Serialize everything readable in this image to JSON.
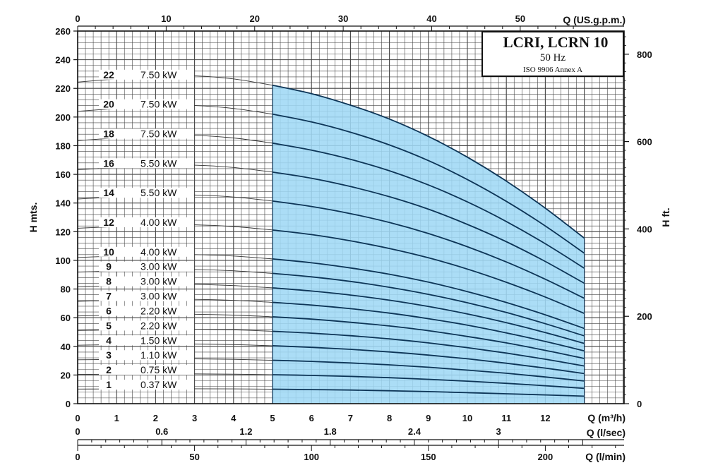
{
  "title_box": {
    "title": "LCRI, LCRN 10",
    "frequency": "50 Hz",
    "standard": "ISO 9906 Annex A"
  },
  "axes": {
    "left_label": "H mts.",
    "right_label": "H ft.",
    "top_label": "Q (US.g.p.m.)",
    "bottom_label_m3h": "Q (m³/h)",
    "bottom_label_lsec": "Q (l/sec)",
    "bottom_label_lmin": "Q (l/min)"
  },
  "colors": {
    "operating_range_fill": "#9fd8f5",
    "curve_in_range": "#0d3557",
    "curve_out_range": "#333333",
    "grid": "#444444"
  },
  "chart_data": {
    "type": "line",
    "title": "LCRI, LCRN 10",
    "subtitle": "50 Hz",
    "note": "ISO 9906 Annex A",
    "xlabel": "Q (m³/h)",
    "ylabel": "H mts.",
    "xlim": [
      0,
      13
    ],
    "ylim": [
      0,
      260
    ],
    "grid": true,
    "legend": "none",
    "operating_range": {
      "x_min": 5,
      "x_max": 13
    },
    "x": [
      0,
      1,
      2,
      3,
      4,
      5,
      6,
      7,
      8,
      9,
      10,
      11,
      12,
      13
    ],
    "y_ticks": [
      0,
      20,
      40,
      60,
      80,
      100,
      120,
      140,
      160,
      180,
      200,
      220,
      240,
      260
    ],
    "x_ticks": [
      "0",
      "1",
      "2",
      "3",
      "4",
      "5",
      "6",
      "7",
      "8",
      "9",
      "10",
      "11",
      "12",
      "Q (m³/h)"
    ],
    "top_axis_ticks": [
      "0",
      "10",
      "20",
      "30",
      "40",
      "50"
    ],
    "right_axis_ticks": [
      "0",
      "200",
      "400",
      "600",
      "800"
    ],
    "lsec_ticks": [
      "0",
      "0.6",
      "1.2",
      "1.8",
      "2.4",
      "3"
    ],
    "lmin_ticks": [
      "0",
      "50",
      "100",
      "150",
      "200"
    ],
    "series": [
      {
        "name": "1",
        "power": "0.37 kW",
        "values": [
          10.2,
          10.3,
          10.4,
          10.4,
          10.3,
          10.1,
          9.8,
          9.5,
          9.0,
          8.4,
          7.7,
          6.9,
          6.1,
          5.2
        ]
      },
      {
        "name": "2",
        "power": "0.75 kW",
        "values": [
          20.4,
          20.6,
          20.8,
          20.8,
          20.6,
          20.2,
          19.7,
          19.0,
          18.1,
          17.0,
          15.7,
          14.2,
          12.5,
          10.7
        ]
      },
      {
        "name": "3",
        "power": "1.10 kW",
        "values": [
          30.6,
          30.9,
          31.2,
          31.2,
          30.9,
          30.3,
          29.5,
          28.4,
          27.1,
          25.4,
          23.4,
          21.2,
          18.6,
          15.8
        ]
      },
      {
        "name": "4",
        "power": "1.50 kW",
        "values": [
          40.8,
          41.2,
          41.6,
          41.6,
          41.2,
          40.4,
          39.3,
          37.9,
          36.1,
          33.9,
          31.3,
          28.2,
          24.8,
          21.0
        ]
      },
      {
        "name": "5",
        "power": "2.20 kW",
        "values": [
          51.0,
          51.5,
          52.0,
          52.0,
          51.5,
          50.5,
          49.2,
          47.4,
          45.2,
          42.4,
          39.1,
          35.3,
          31.0,
          26.3
        ]
      },
      {
        "name": "6",
        "power": "2.20 kW",
        "values": [
          61.2,
          61.8,
          62.4,
          62.4,
          61.8,
          60.6,
          59.0,
          56.8,
          54.2,
          50.9,
          46.9,
          42.4,
          37.2,
          31.5
        ]
      },
      {
        "name": "7",
        "power": "3.00 kW",
        "values": [
          71.4,
          72.1,
          72.8,
          72.8,
          72.1,
          70.7,
          68.8,
          66.3,
          63.2,
          59.3,
          54.8,
          49.4,
          43.4,
          36.8
        ]
      },
      {
        "name": "8",
        "power": "3.00 kW",
        "values": [
          81.6,
          82.4,
          83.2,
          83.2,
          82.4,
          80.8,
          78.6,
          75.8,
          72.2,
          67.8,
          62.6,
          56.5,
          49.6,
          42.0
        ]
      },
      {
        "name": "9",
        "power": "3.00 kW",
        "values": [
          91.8,
          92.7,
          93.6,
          93.6,
          92.7,
          90.9,
          88.5,
          85.3,
          81.2,
          76.3,
          70.4,
          63.6,
          55.8,
          47.3
        ]
      },
      {
        "name": "10",
        "power": "4.00 kW",
        "values": [
          102.0,
          103.0,
          104.0,
          104.0,
          103.0,
          101.0,
          98.3,
          94.7,
          90.3,
          84.8,
          78.2,
          70.6,
          62.0,
          52.5
        ]
      },
      {
        "name": "12",
        "power": "4.00 kW",
        "values": [
          122.4,
          123.6,
          124.8,
          124.8,
          123.6,
          121.2,
          118.0,
          113.6,
          108.3,
          101.8,
          93.9,
          84.7,
          74.4,
          63.0
        ]
      },
      {
        "name": "14",
        "power": "5.50 kW",
        "values": [
          142.8,
          144.2,
          145.6,
          145.6,
          144.2,
          141.4,
          137.6,
          132.6,
          126.4,
          118.7,
          109.5,
          98.9,
          86.8,
          73.5
        ]
      },
      {
        "name": "16",
        "power": "5.50 kW",
        "values": [
          163.2,
          164.8,
          166.4,
          166.4,
          164.8,
          161.6,
          157.3,
          151.5,
          144.4,
          135.7,
          125.1,
          113.0,
          99.2,
          84.0
        ]
      },
      {
        "name": "18",
        "power": "7.50 kW",
        "values": [
          183.6,
          185.4,
          187.2,
          187.2,
          185.4,
          181.8,
          176.9,
          170.5,
          162.5,
          152.6,
          140.8,
          127.1,
          111.6,
          94.5
        ]
      },
      {
        "name": "20",
        "power": "7.50 kW",
        "values": [
          204.0,
          206.0,
          208.0,
          208.0,
          206.0,
          202.0,
          196.6,
          189.4,
          180.5,
          169.6,
          156.4,
          141.2,
          124.0,
          105.0
        ]
      },
      {
        "name": "22",
        "power": "7.50 kW",
        "values": [
          224.4,
          226.6,
          228.8,
          228.8,
          226.6,
          222.2,
          216.3,
          208.3,
          198.6,
          186.5,
          172.0,
          155.3,
          136.4,
          115.5
        ]
      }
    ]
  }
}
